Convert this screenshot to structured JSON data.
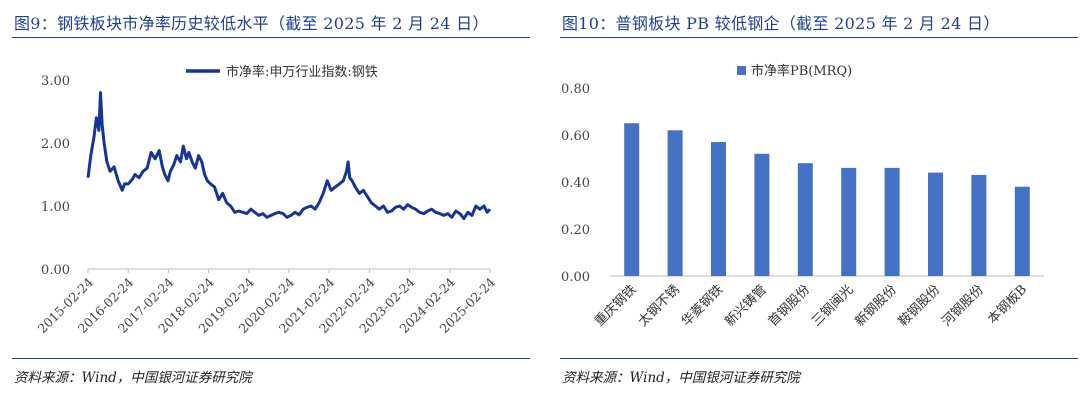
{
  "figures": [
    {
      "title": "图9：钢铁板块市净率历史较低水平（截至 2025 年 2 月 24 日）",
      "source": "资料来源：Wind，中国银河证券研究院"
    },
    {
      "title": "图10：普钢板块 PB 较低钢企（截至 2025 年 2 月 24 日）",
      "source": "资料来源：Wind，中国银河证券研究院"
    }
  ],
  "colors": {
    "accent": "#1f3f8f",
    "series": "#16349a",
    "bar": "#4472c4",
    "axis": "#bfbfbf"
  },
  "chart_data": [
    {
      "type": "line",
      "title": "",
      "xlabel": "",
      "ylabel": "",
      "ylim": [
        0,
        3
      ],
      "yticks": [
        "0.00",
        "1.00",
        "2.00",
        "3.00"
      ],
      "xticks": [
        "2015-02-24",
        "2016-02-24",
        "2017-02-24",
        "2018-02-24",
        "2019-02-24",
        "2020-02-24",
        "2021-02-24",
        "2022-02-24",
        "2023-02-24",
        "2024-02-24",
        "2025-02-24"
      ],
      "grid": false,
      "legend": "top-center",
      "series": [
        {
          "name": "市净率:申万行业指数:钢铁",
          "x": [
            2015.15,
            2015.22,
            2015.3,
            2015.36,
            2015.42,
            2015.46,
            2015.5,
            2015.55,
            2015.62,
            2015.7,
            2015.8,
            2015.9,
            2016.0,
            2016.06,
            2016.15,
            2016.25,
            2016.32,
            2016.42,
            2016.52,
            2016.62,
            2016.72,
            2016.82,
            2016.92,
            2017.0,
            2017.06,
            2017.14,
            2017.2,
            2017.28,
            2017.36,
            2017.45,
            2017.52,
            2017.6,
            2017.66,
            2017.74,
            2017.82,
            2017.9,
            2017.98,
            2018.05,
            2018.12,
            2018.2,
            2018.3,
            2018.4,
            2018.5,
            2018.6,
            2018.7,
            2018.8,
            2018.9,
            2019.0,
            2019.1,
            2019.2,
            2019.3,
            2019.4,
            2019.5,
            2019.6,
            2019.7,
            2019.8,
            2019.9,
            2020.0,
            2020.1,
            2020.2,
            2020.3,
            2020.4,
            2020.5,
            2020.6,
            2020.7,
            2020.8,
            2020.9,
            2021.0,
            2021.1,
            2021.2,
            2021.3,
            2021.4,
            2021.5,
            2021.58,
            2021.62,
            2021.66,
            2021.72,
            2021.8,
            2021.9,
            2022.0,
            2022.1,
            2022.2,
            2022.3,
            2022.4,
            2022.5,
            2022.6,
            2022.7,
            2022.8,
            2022.9,
            2023.0,
            2023.1,
            2023.2,
            2023.3,
            2023.4,
            2023.5,
            2023.6,
            2023.7,
            2023.8,
            2023.9,
            2024.0,
            2024.1,
            2024.2,
            2024.3,
            2024.4,
            2024.5,
            2024.6,
            2024.7,
            2024.8,
            2024.9,
            2025.0,
            2025.08,
            2025.15
          ],
          "values": [
            1.45,
            1.8,
            2.1,
            2.4,
            2.2,
            2.8,
            2.3,
            2.0,
            1.7,
            1.55,
            1.62,
            1.4,
            1.25,
            1.35,
            1.35,
            1.42,
            1.5,
            1.45,
            1.55,
            1.6,
            1.85,
            1.75,
            1.88,
            1.62,
            1.5,
            1.4,
            1.55,
            1.65,
            1.8,
            1.7,
            1.95,
            1.75,
            1.85,
            1.7,
            1.6,
            1.8,
            1.7,
            1.5,
            1.4,
            1.35,
            1.3,
            1.1,
            1.2,
            1.05,
            1.0,
            0.9,
            0.92,
            0.9,
            0.88,
            0.95,
            0.9,
            0.85,
            0.88,
            0.82,
            0.85,
            0.88,
            0.9,
            0.88,
            0.82,
            0.85,
            0.9,
            0.86,
            0.95,
            0.98,
            1.0,
            0.95,
            1.05,
            1.2,
            1.4,
            1.25,
            1.3,
            1.35,
            1.4,
            1.55,
            1.7,
            1.45,
            1.4,
            1.3,
            1.2,
            1.25,
            1.15,
            1.05,
            1.0,
            0.95,
            1.0,
            0.9,
            0.92,
            0.98,
            1.0,
            0.95,
            1.02,
            0.98,
            0.95,
            0.9,
            0.88,
            0.92,
            0.95,
            0.9,
            0.88,
            0.85,
            0.88,
            0.82,
            0.92,
            0.88,
            0.8,
            0.9,
            0.85,
            1.0,
            0.95,
            1.0,
            0.9,
            0.95
          ]
        }
      ]
    },
    {
      "type": "bar",
      "title": "",
      "xlabel": "",
      "ylabel": "",
      "ylim": [
        0,
        0.8
      ],
      "yticks": [
        "0.00",
        "0.20",
        "0.40",
        "0.60",
        "0.80"
      ],
      "grid": false,
      "legend": "top-center",
      "categories": [
        "重庆钢铁",
        "太钢不锈",
        "华菱钢铁",
        "新兴铸管",
        "首钢股份",
        "三钢闽光",
        "新钢股份",
        "鞍钢股份",
        "河钢股份",
        "本钢板B"
      ],
      "series": [
        {
          "name": "市净率PB(MRQ)",
          "values": [
            0.65,
            0.62,
            0.57,
            0.52,
            0.48,
            0.46,
            0.46,
            0.44,
            0.43,
            0.38
          ]
        }
      ]
    }
  ]
}
